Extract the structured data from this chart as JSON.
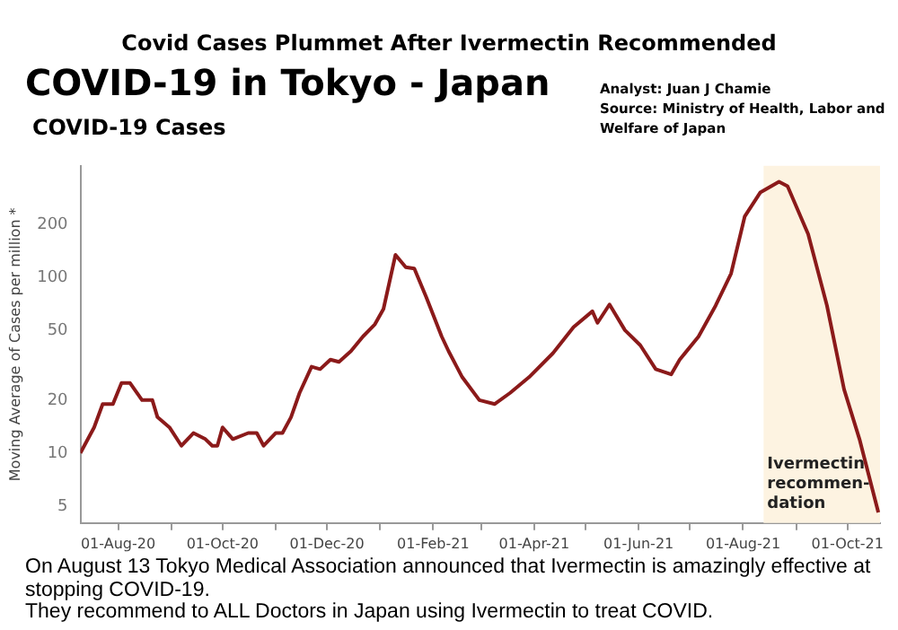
{
  "chart_data": {
    "type": "line",
    "title": "Covid Cases Plummet After Ivermectin Recommended",
    "subtitle": "COVID-19 in Tokyo - Japan",
    "annotations": [
      "COVID-19 Cases",
      "Analyst: Juan J Chamie",
      "Source: Ministry of Health, Labor and Welfare of Japan",
      "On August 13 Tokyo Medical Association announced that Ivermectin is amazingly effective at stopping COVID-19.",
      "They recommend to ALL Doctors in Japan using Ivermectin to treat COVID."
    ],
    "ylabel": "Moving Average of Cases per million *",
    "log": "y",
    "grid": false,
    "legend": false,
    "marker": "none",
    "line_style": "solid",
    "xlim": [
      "2020-07-10",
      "2021-10-20"
    ],
    "ylim": [
      4,
      430
    ],
    "yticks": [
      5,
      10,
      20,
      50,
      100,
      200
    ],
    "xticks": [
      {
        "value": "2020-08-01",
        "label": "01-Aug-20"
      },
      {
        "value": "2020-09-01",
        "label": null
      },
      {
        "value": "2020-10-01",
        "label": "01-Oct-20"
      },
      {
        "value": "2020-11-01",
        "label": null
      },
      {
        "value": "2020-12-01",
        "label": "01-Dec-20"
      },
      {
        "value": "2021-01-01",
        "label": null
      },
      {
        "value": "2021-02-01",
        "label": "01-Feb-21"
      },
      {
        "value": "2021-03-01",
        "label": null
      },
      {
        "value": "2021-04-01",
        "label": "01-Apr-21"
      },
      {
        "value": "2021-05-01",
        "label": null
      },
      {
        "value": "2021-06-01",
        "label": "01-Jun-21"
      },
      {
        "value": "2021-07-01",
        "label": null
      },
      {
        "value": "2021-08-01",
        "label": "01-Aug-21"
      },
      {
        "value": "2021-09-01",
        "label": null
      },
      {
        "value": "2021-10-01",
        "label": "01-Oct-21"
      }
    ],
    "bands": [
      {
        "axis": "x",
        "from": "2021-08-13",
        "to": "2021-10-20",
        "label": "Ivermectin\nrecommen-\ndation",
        "color": "#fdf3e1"
      }
    ],
    "series": [
      {
        "color": "#8b1a1a",
        "x": [
          "2020-07-10",
          "2020-07-18",
          "2020-07-23",
          "2020-07-29",
          "2020-08-03",
          "2020-08-08",
          "2020-08-15",
          "2020-08-21",
          "2020-08-24",
          "2020-08-31",
          "2020-09-07",
          "2020-09-14",
          "2020-09-21",
          "2020-09-25",
          "2020-09-28",
          "2020-10-01",
          "2020-10-07",
          "2020-10-16",
          "2020-10-21",
          "2020-10-25",
          "2020-11-01",
          "2020-11-05",
          "2020-11-10",
          "2020-11-15",
          "2020-11-22",
          "2020-11-27",
          "2020-12-03",
          "2020-12-08",
          "2020-12-15",
          "2020-12-22",
          "2020-12-29",
          "2021-01-03",
          "2021-01-10",
          "2021-01-16",
          "2021-01-21",
          "2021-01-28",
          "2021-02-06",
          "2021-02-10",
          "2021-02-18",
          "2021-02-28",
          "2021-03-09",
          "2021-03-18",
          "2021-03-29",
          "2021-04-12",
          "2021-04-24",
          "2021-05-05",
          "2021-05-08",
          "2021-05-15",
          "2021-05-24",
          "2021-06-02",
          "2021-06-11",
          "2021-06-20",
          "2021-06-25",
          "2021-07-06",
          "2021-07-16",
          "2021-07-25",
          "2021-08-02",
          "2021-08-11",
          "2021-08-22",
          "2021-08-27",
          "2021-09-08",
          "2021-09-19",
          "2021-09-29",
          "2021-10-08",
          "2021-10-19"
        ],
        "values": [
          10,
          14,
          19,
          19,
          25,
          25,
          20,
          20,
          16,
          14,
          11,
          13,
          12,
          11,
          11,
          14,
          12,
          13,
          13,
          11,
          13,
          13,
          16,
          22,
          31,
          30,
          34,
          33,
          38,
          46,
          54,
          66,
          134,
          114,
          112,
          77,
          46,
          38,
          27,
          20,
          19,
          22,
          27,
          37,
          52,
          64,
          55,
          70,
          50,
          41,
          30,
          28,
          34,
          46,
          69,
          105,
          222,
          303,
          349,
          329,
          176,
          69,
          23,
          12,
          4.6
        ]
      }
    ]
  }
}
